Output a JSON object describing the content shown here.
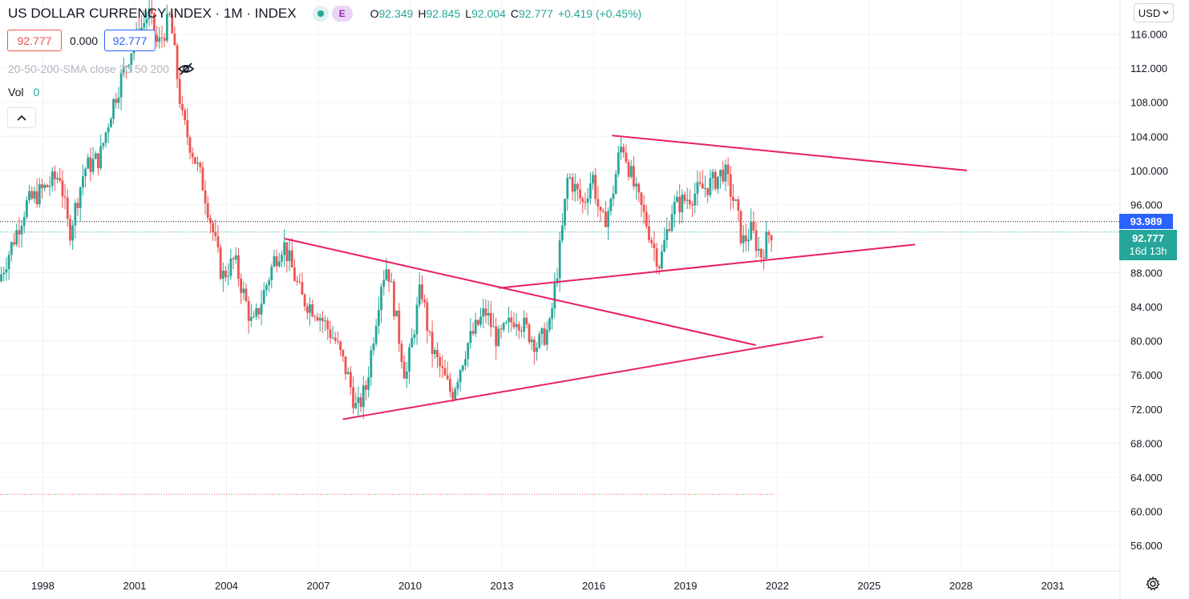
{
  "header": {
    "title": "US DOLLAR CURRENCY INDEX · 1M · INDEX",
    "exchange_badge": "E",
    "ohlc": [
      {
        "key": "O",
        "value": "92.349"
      },
      {
        "key": "H",
        "value": "92.845"
      },
      {
        "key": "L",
        "value": "92.004"
      },
      {
        "key": "C",
        "value": "92.777"
      }
    ],
    "change": "+0.419 (+0.45%)"
  },
  "price_boxes": {
    "sell": "92.777",
    "spread": "0.000",
    "buy": "92.777"
  },
  "indicators": {
    "sma_label": "20-50-200-SMA close 20 50 200",
    "vol_label": "Vol",
    "vol_value": "0"
  },
  "currency_selector": "USD",
  "price_labels": {
    "line_price": "93.989",
    "last_price": "92.777",
    "countdown": "16d 13h"
  },
  "colors": {
    "up": "#26a69a",
    "down": "#ef5350",
    "trendline": "#e91e63",
    "blue_label": "#2962ff"
  },
  "chart_data": {
    "type": "candlestick",
    "title": "US DOLLAR CURRENCY INDEX · 1M · INDEX",
    "interval": "1M",
    "x_ticks": [
      "1998",
      "2001",
      "2004",
      "2007",
      "2010",
      "2013",
      "2016",
      "2019",
      "2022",
      "2025",
      "2028",
      "2031"
    ],
    "y_ticks": [
      "56.000",
      "60.000",
      "64.000",
      "68.000",
      "72.000",
      "76.000",
      "80.000",
      "84.000",
      "88.000",
      "92.000",
      "96.000",
      "100.000",
      "104.000",
      "108.000",
      "112.000",
      "116.000"
    ],
    "ylim": [
      53,
      120
    ],
    "xlim": [
      1996.6,
      2033.2
    ],
    "grid": true,
    "horizontal_line": 93.989,
    "last_price": 92.777,
    "dotted_level": 62,
    "anchors": [
      [
        1996.6,
        87.0
      ],
      [
        1997.5,
        96.0
      ],
      [
        1998.6,
        99.5
      ],
      [
        1998.9,
        92.5
      ],
      [
        1999.4,
        100.2
      ],
      [
        1999.9,
        101.5
      ],
      [
        2000.3,
        107.5
      ],
      [
        2000.9,
        114.0
      ],
      [
        2001.5,
        118.5
      ],
      [
        2001.8,
        114.5
      ],
      [
        2002.2,
        118.0
      ],
      [
        2002.6,
        106.0
      ],
      [
        2003.3,
        98.0
      ],
      [
        2003.9,
        87.5
      ],
      [
        2004.3,
        89.5
      ],
      [
        2004.9,
        81.5
      ],
      [
        2005.6,
        89.5
      ],
      [
        2005.9,
        91.5
      ],
      [
        2006.5,
        85.0
      ],
      [
        2007.0,
        83.5
      ],
      [
        2007.6,
        80.0
      ],
      [
        2008.0,
        76.0
      ],
      [
        2008.3,
        71.7
      ],
      [
        2008.6,
        74.5
      ],
      [
        2009.1,
        87.0
      ],
      [
        2009.3,
        89.0
      ],
      [
        2009.9,
        75.5
      ],
      [
        2010.4,
        86.5
      ],
      [
        2010.7,
        79.5
      ],
      [
        2011.3,
        74.5
      ],
      [
        2011.4,
        73.7
      ],
      [
        2011.9,
        79.5
      ],
      [
        2012.5,
        83.5
      ],
      [
        2012.9,
        80.0
      ],
      [
        2013.5,
        83.0
      ],
      [
        2014.2,
        79.5
      ],
      [
        2014.6,
        81.5
      ],
      [
        2015.0,
        92.5
      ],
      [
        2015.2,
        99.5
      ],
      [
        2015.7,
        96.0
      ],
      [
        2016.0,
        99.5
      ],
      [
        2016.3,
        93.5
      ],
      [
        2016.6,
        96.0
      ],
      [
        2016.9,
        102.5
      ],
      [
        2017.0,
        103.0
      ],
      [
        2017.4,
        97.5
      ],
      [
        2017.8,
        93.5
      ],
      [
        2018.0,
        91.0
      ],
      [
        2018.2,
        89.0
      ],
      [
        2018.6,
        95.5
      ],
      [
        2019.2,
        97.0
      ],
      [
        2019.9,
        98.5
      ],
      [
        2020.3,
        100.0
      ],
      [
        2020.7,
        95.5
      ],
      [
        2020.9,
        91.5
      ],
      [
        2021.2,
        93.0
      ],
      [
        2021.5,
        90.0
      ],
      [
        2021.8,
        92.8
      ]
    ],
    "trendlines": [
      {
        "from": [
          2016.6,
          104.1
        ],
        "to": [
          2028.2,
          100.0
        ]
      },
      {
        "from": [
          2005.9,
          92.0
        ],
        "to": [
          2021.3,
          79.5
        ]
      },
      {
        "from": [
          2007.8,
          70.8
        ],
        "to": [
          2023.5,
          80.5
        ]
      },
      {
        "from": [
          2012.9,
          86.2
        ],
        "to": [
          2026.5,
          91.3
        ]
      }
    ]
  }
}
